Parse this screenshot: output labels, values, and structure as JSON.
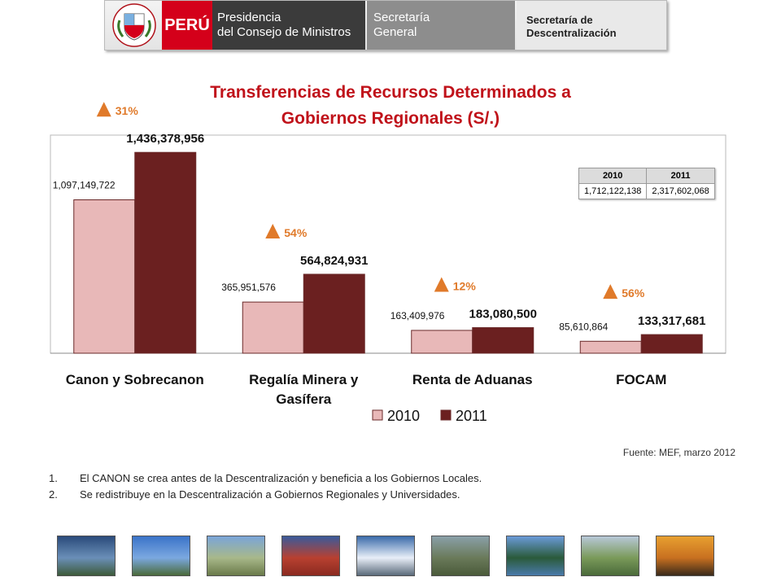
{
  "header": {
    "peru": "PERÚ",
    "pcm_line1": "Presidencia",
    "pcm_line2": "del Consejo de Ministros",
    "sg_line1": "Secretaría",
    "sg_line2": "General",
    "sd_line1": "Secretaría de",
    "sd_line2": "Descentralización"
  },
  "colors": {
    "series_2010": "#e8b8b8",
    "series_2011": "#6b2020",
    "title": "#c0121a",
    "arrow": "#e07a2a"
  },
  "chart_data": {
    "type": "bar",
    "title_line1": "Transferencias de Recursos Determinados a",
    "title_line2": "Gobiernos Regionales (S/.)",
    "categories": [
      "Canon y Sobrecanon",
      "Regalía Minera y Gasífera",
      "Renta de Aduanas",
      "FOCAM"
    ],
    "category_lines": [
      [
        "Canon y Sobrecanon"
      ],
      [
        "Regalía Minera y",
        "Gasífera"
      ],
      [
        "Renta de Aduanas"
      ],
      [
        "FOCAM"
      ]
    ],
    "series": [
      {
        "name": "2010",
        "values": [
          1097149722,
          365951576,
          163409976,
          85610864
        ],
        "labels": [
          "1,097,149,722",
          "365,951,576",
          "163,409,976",
          "85,610,864"
        ]
      },
      {
        "name": "2011",
        "values": [
          1436378956,
          564824931,
          183080500,
          133317681
        ],
        "labels": [
          "1,436,378,956",
          "564,824,931",
          "183,080,500",
          "133,317,681"
        ]
      }
    ],
    "growth": [
      "31%",
      "54%",
      "12%",
      "56%"
    ],
    "ylim": [
      0,
      1600000000
    ],
    "grid": false,
    "legend_position": "bottom"
  },
  "table": {
    "headers": [
      "2010",
      "2011"
    ],
    "values": [
      "1,712,122,138",
      "2,317,602,068"
    ]
  },
  "source": "Fuente: MEF, marzo 2012",
  "notes": [
    {
      "num": "1.",
      "text": "El CANON se crea antes de la Descentralización y beneficia a los Gobiernos Locales."
    },
    {
      "num": "2.",
      "text": "Se redistribuye en la Descentralización a Gobiernos Regionales y Universidades."
    }
  ],
  "thumbnails": [
    {
      "name": "lake-photo",
      "colors": [
        "#2a4a7a",
        "#6a8fb8",
        "#3d5a3a"
      ]
    },
    {
      "name": "plaza-photo",
      "colors": [
        "#3a73c8",
        "#7ba8e0",
        "#4a6a3a"
      ]
    },
    {
      "name": "mountain-photo",
      "colors": [
        "#7aa5d8",
        "#a8b88a",
        "#6a7a4a"
      ]
    },
    {
      "name": "pyramid-photo",
      "colors": [
        "#3a5a9a",
        "#b84030",
        "#8a2a20"
      ]
    },
    {
      "name": "snow-peak-photo",
      "colors": [
        "#3a6aaa",
        "#e8eef8",
        "#5a6a7a"
      ]
    },
    {
      "name": "ruins-photo",
      "colors": [
        "#8aa0a8",
        "#6a7a5a",
        "#4a5a3a"
      ]
    },
    {
      "name": "lagoon-photo",
      "colors": [
        "#6a9ad8",
        "#2a5a3a",
        "#4a7aaa"
      ]
    },
    {
      "name": "valley-photo",
      "colors": [
        "#b8c8d8",
        "#7a9a5a",
        "#4a6a3a"
      ]
    },
    {
      "name": "sunset-photo",
      "colors": [
        "#e8a030",
        "#c87020",
        "#3a2a1a"
      ]
    }
  ]
}
